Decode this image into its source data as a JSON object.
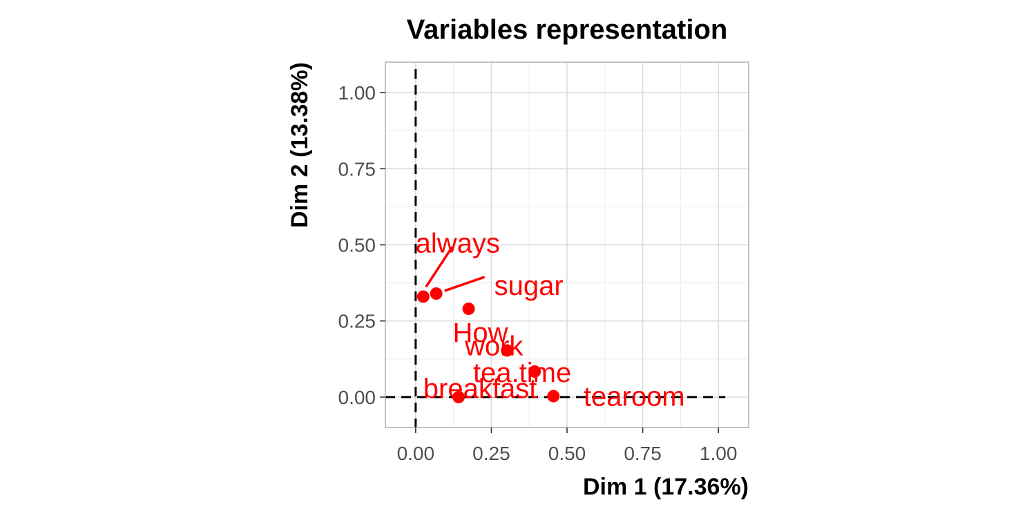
{
  "chart_data": {
    "type": "scatter",
    "title": "Variables representation",
    "xlabel": "Dim 1 (17.36%)",
    "ylabel": "Dim 2 (13.38%)",
    "xlim": [
      -0.1,
      1.1
    ],
    "ylim": [
      -0.1,
      1.1
    ],
    "x_ticks": [
      0,
      0.25,
      0.5,
      0.75,
      1
    ],
    "y_ticks": [
      0,
      0.25,
      0.5,
      0.75,
      1
    ],
    "x_tick_labels": [
      "0.00",
      "0.25",
      "0.50",
      "0.75",
      "1.00"
    ],
    "y_tick_labels": [
      "0.00",
      "0.25",
      "0.50",
      "0.75",
      "1.00"
    ],
    "grid": true,
    "reference_lines": {
      "x": 0,
      "y": 0,
      "style": "dashed",
      "color": "#000000"
    },
    "point_color": "#ff0000",
    "points": [
      {
        "label": "always",
        "x": 0.025,
        "y": 0.33
      },
      {
        "label": "sugar",
        "x": 0.068,
        "y": 0.34
      },
      {
        "label": "How",
        "x": 0.175,
        "y": 0.29
      },
      {
        "label": "work",
        "x": 0.302,
        "y": 0.153
      },
      {
        "label": "tea.time",
        "x": 0.393,
        "y": 0.084
      },
      {
        "label": "breakfast",
        "x": 0.142,
        "y": 0.0
      },
      {
        "label": "tearoom",
        "x": 0.455,
        "y": 0.003
      }
    ]
  }
}
